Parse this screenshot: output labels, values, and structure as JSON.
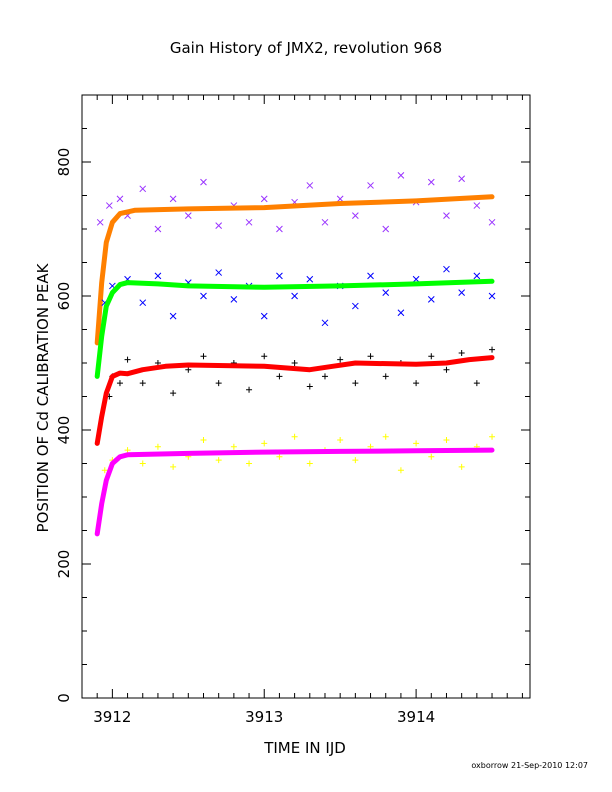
{
  "chart_data": {
    "type": "scatter",
    "title": "Gain History of JMX2, revolution 968",
    "xlabel": "TIME IN IJD",
    "ylabel": "POSITION OF Cd CALIBRATION PEAK",
    "xlim": [
      3911.8,
      3914.75
    ],
    "ylim": [
      0,
      900
    ],
    "xticks": [
      3912,
      3913,
      3914
    ],
    "yticks": [
      0,
      200,
      400,
      600,
      800
    ],
    "grid": false,
    "series": [
      {
        "marker": "x",
        "color": "#9933ff",
        "points": [
          [
            3911.92,
            710
          ],
          [
            3911.98,
            735
          ],
          [
            3912.05,
            745
          ],
          [
            3912.1,
            720
          ],
          [
            3912.2,
            760
          ],
          [
            3912.3,
            700
          ],
          [
            3912.4,
            745
          ],
          [
            3912.5,
            720
          ],
          [
            3912.6,
            770
          ],
          [
            3912.7,
            705
          ],
          [
            3912.8,
            735
          ],
          [
            3912.9,
            710
          ],
          [
            3913.0,
            745
          ],
          [
            3913.1,
            700
          ],
          [
            3913.2,
            740
          ],
          [
            3913.3,
            765
          ],
          [
            3913.4,
            710
          ],
          [
            3913.5,
            745
          ],
          [
            3913.6,
            720
          ],
          [
            3913.7,
            765
          ],
          [
            3913.8,
            700
          ],
          [
            3913.9,
            780
          ],
          [
            3914.0,
            740
          ],
          [
            3914.1,
            770
          ],
          [
            3914.2,
            720
          ],
          [
            3914.3,
            775
          ],
          [
            3914.4,
            735
          ],
          [
            3914.5,
            710
          ]
        ]
      },
      {
        "marker": "line",
        "color": "#ff8000",
        "points": [
          [
            3911.9,
            530
          ],
          [
            3911.93,
            620
          ],
          [
            3911.96,
            680
          ],
          [
            3912.0,
            710
          ],
          [
            3912.05,
            723
          ],
          [
            3912.15,
            728
          ],
          [
            3912.5,
            730
          ],
          [
            3913.0,
            732
          ],
          [
            3913.5,
            738
          ],
          [
            3914.0,
            742
          ],
          [
            3914.5,
            748
          ]
        ]
      },
      {
        "marker": "x",
        "color": "#0000ff",
        "points": [
          [
            3911.95,
            590
          ],
          [
            3912.0,
            615
          ],
          [
            3912.1,
            625
          ],
          [
            3912.2,
            590
          ],
          [
            3912.3,
            630
          ],
          [
            3912.4,
            570
          ],
          [
            3912.5,
            620
          ],
          [
            3912.6,
            600
          ],
          [
            3912.7,
            635
          ],
          [
            3912.8,
            595
          ],
          [
            3912.9,
            615
          ],
          [
            3913.0,
            570
          ],
          [
            3913.1,
            630
          ],
          [
            3913.2,
            600
          ],
          [
            3913.3,
            625
          ],
          [
            3913.4,
            560
          ],
          [
            3913.5,
            615
          ],
          [
            3913.6,
            585
          ],
          [
            3913.7,
            630
          ],
          [
            3913.8,
            605
          ],
          [
            3913.9,
            575
          ],
          [
            3914.0,
            625
          ],
          [
            3914.1,
            595
          ],
          [
            3914.2,
            640
          ],
          [
            3914.3,
            605
          ],
          [
            3914.4,
            630
          ],
          [
            3914.5,
            600
          ]
        ]
      },
      {
        "marker": "line",
        "color": "#00ff00",
        "points": [
          [
            3911.9,
            480
          ],
          [
            3911.93,
            540
          ],
          [
            3911.96,
            585
          ],
          [
            3912.0,
            605
          ],
          [
            3912.05,
            617
          ],
          [
            3912.1,
            620
          ],
          [
            3912.3,
            618
          ],
          [
            3912.5,
            615
          ],
          [
            3913.0,
            613
          ],
          [
            3913.5,
            615
          ],
          [
            3914.0,
            618
          ],
          [
            3914.5,
            622
          ]
        ]
      },
      {
        "marker": "+",
        "color": "#000000",
        "points": [
          [
            3911.98,
            450
          ],
          [
            3912.0,
            480
          ],
          [
            3912.05,
            470
          ],
          [
            3912.1,
            505
          ],
          [
            3912.2,
            470
          ],
          [
            3912.3,
            500
          ],
          [
            3912.4,
            455
          ],
          [
            3912.5,
            490
          ],
          [
            3912.6,
            510
          ],
          [
            3912.7,
            470
          ],
          [
            3912.8,
            500
          ],
          [
            3912.9,
            460
          ],
          [
            3913.0,
            510
          ],
          [
            3913.1,
            480
          ],
          [
            3913.2,
            500
          ],
          [
            3913.3,
            465
          ],
          [
            3913.4,
            480
          ],
          [
            3913.5,
            505
          ],
          [
            3913.6,
            470
          ],
          [
            3913.7,
            510
          ],
          [
            3913.8,
            480
          ],
          [
            3913.9,
            500
          ],
          [
            3914.0,
            470
          ],
          [
            3914.1,
            510
          ],
          [
            3914.2,
            490
          ],
          [
            3914.3,
            515
          ],
          [
            3914.4,
            470
          ],
          [
            3914.5,
            520
          ]
        ]
      },
      {
        "marker": "line",
        "color": "#ff0000",
        "points": [
          [
            3911.9,
            380
          ],
          [
            3911.93,
            420
          ],
          [
            3911.96,
            455
          ],
          [
            3912.0,
            480
          ],
          [
            3912.05,
            485
          ],
          [
            3912.1,
            484
          ],
          [
            3912.2,
            490
          ],
          [
            3912.35,
            495
          ],
          [
            3912.5,
            497
          ],
          [
            3913.0,
            495
          ],
          [
            3913.3,
            490
          ],
          [
            3913.45,
            495
          ],
          [
            3913.6,
            500
          ],
          [
            3914.0,
            498
          ],
          [
            3914.2,
            500
          ],
          [
            3914.35,
            505
          ],
          [
            3914.5,
            508
          ]
        ]
      },
      {
        "marker": "+",
        "color": "#ffff00",
        "points": [
          [
            3911.95,
            340
          ],
          [
            3912.0,
            355
          ],
          [
            3912.1,
            370
          ],
          [
            3912.2,
            350
          ],
          [
            3912.3,
            375
          ],
          [
            3912.4,
            345
          ],
          [
            3912.5,
            360
          ],
          [
            3912.6,
            385
          ],
          [
            3912.7,
            355
          ],
          [
            3912.8,
            375
          ],
          [
            3912.9,
            350
          ],
          [
            3913.0,
            380
          ],
          [
            3913.1,
            360
          ],
          [
            3913.2,
            390
          ],
          [
            3913.3,
            350
          ],
          [
            3913.4,
            370
          ],
          [
            3913.5,
            385
          ],
          [
            3913.6,
            355
          ],
          [
            3913.7,
            375
          ],
          [
            3913.8,
            390
          ],
          [
            3913.9,
            340
          ],
          [
            3914.0,
            380
          ],
          [
            3914.1,
            360
          ],
          [
            3914.2,
            385
          ],
          [
            3914.3,
            345
          ],
          [
            3914.4,
            375
          ],
          [
            3914.5,
            390
          ]
        ]
      },
      {
        "marker": "line",
        "color": "#ff00ff",
        "points": [
          [
            3911.9,
            245
          ],
          [
            3911.93,
            290
          ],
          [
            3911.96,
            325
          ],
          [
            3912.0,
            350
          ],
          [
            3912.05,
            360
          ],
          [
            3912.1,
            363
          ],
          [
            3912.5,
            365
          ],
          [
            3913.0,
            367
          ],
          [
            3913.5,
            368
          ],
          [
            3914.0,
            369
          ],
          [
            3914.5,
            370
          ]
        ]
      }
    ]
  },
  "footer": "oxborrow 21-Sep-2010 12:07"
}
